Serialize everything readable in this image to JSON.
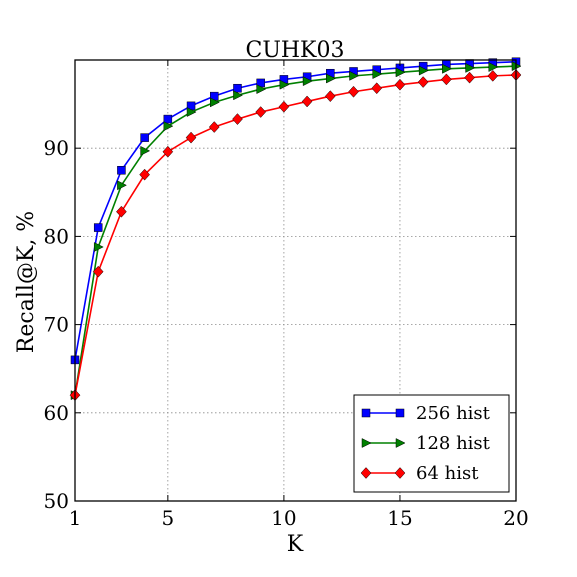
{
  "chart_data": {
    "type": "line",
    "title": "CUHK03",
    "xlabel": "K",
    "ylabel": "Recall@K, %",
    "xlim": [
      1,
      20
    ],
    "ylim": [
      50,
      100
    ],
    "xticks": [
      1,
      5,
      10,
      15,
      20
    ],
    "yticks": [
      50,
      60,
      70,
      80,
      90
    ],
    "grid": true,
    "legend_position": "lower right",
    "x": [
      1,
      2,
      3,
      4,
      5,
      6,
      7,
      8,
      9,
      10,
      11,
      12,
      13,
      14,
      15,
      16,
      17,
      18,
      19,
      20
    ],
    "series": [
      {
        "name": "256 hist",
        "color": "#0000ff",
        "marker": "square",
        "values": [
          66.0,
          81.0,
          87.5,
          91.2,
          93.3,
          94.8,
          95.9,
          96.8,
          97.4,
          97.8,
          98.1,
          98.5,
          98.7,
          98.9,
          99.1,
          99.3,
          99.5,
          99.6,
          99.7,
          99.8
        ]
      },
      {
        "name": "128 hist",
        "color": "#008000",
        "marker": "triangle-right",
        "values": [
          62.0,
          78.8,
          85.8,
          89.7,
          92.5,
          94.1,
          95.2,
          96.0,
          96.7,
          97.2,
          97.6,
          97.9,
          98.2,
          98.4,
          98.6,
          98.8,
          99.0,
          99.1,
          99.2,
          99.3
        ]
      },
      {
        "name": "64 hist",
        "color": "#ff0000",
        "marker": "diamond",
        "values": [
          62.0,
          76.0,
          82.8,
          87.0,
          89.6,
          91.2,
          92.4,
          93.3,
          94.1,
          94.7,
          95.3,
          95.9,
          96.4,
          96.8,
          97.2,
          97.5,
          97.8,
          98.0,
          98.2,
          98.3
        ]
      }
    ]
  }
}
